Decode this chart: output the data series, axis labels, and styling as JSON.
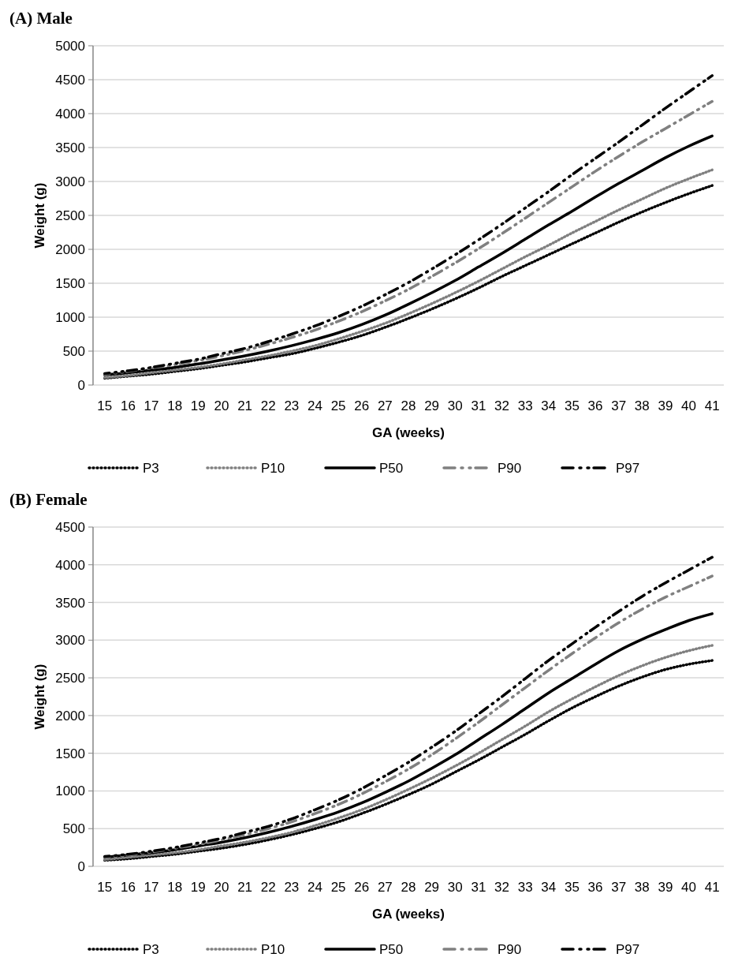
{
  "chart_data": [
    {
      "type": "line",
      "title": "(A) Male",
      "xlabel": "GA (weeks)",
      "ylabel": "Weight (g)",
      "categories": [
        "15",
        "16",
        "17",
        "18",
        "19",
        "20",
        "21",
        "22",
        "23",
        "24",
        "25",
        "26",
        "27",
        "28",
        "29",
        "30",
        "31",
        "32",
        "33",
        "34",
        "35",
        "36",
        "37",
        "38",
        "39",
        "40",
        "41"
      ],
      "ylim": [
        0,
        5000
      ],
      "yticks": [
        0,
        500,
        1000,
        1500,
        2000,
        2500,
        3000,
        3500,
        4000,
        4500,
        5000
      ],
      "grid": "y",
      "legend": "bottom",
      "series": [
        {
          "name": "P3",
          "color": "#000000",
          "line_style": "dotted",
          "values": [
            100,
            130,
            160,
            200,
            240,
            290,
            340,
            400,
            460,
            540,
            630,
            730,
            850,
            980,
            1120,
            1270,
            1430,
            1600,
            1760,
            1920,
            2080,
            2240,
            2400,
            2550,
            2690,
            2820,
            2940
          ]
        },
        {
          "name": "P10",
          "color": "#808080",
          "line_style": "dotted",
          "values": [
            110,
            140,
            180,
            220,
            260,
            310,
            370,
            430,
            500,
            580,
            680,
            790,
            910,
            1050,
            1200,
            1360,
            1530,
            1710,
            1890,
            2060,
            2240,
            2410,
            2580,
            2740,
            2900,
            3040,
            3170
          ]
        },
        {
          "name": "P50",
          "color": "#000000",
          "line_style": "solid",
          "values": [
            150,
            180,
            220,
            260,
            310,
            370,
            430,
            500,
            580,
            670,
            770,
            890,
            1030,
            1190,
            1360,
            1540,
            1740,
            1940,
            2150,
            2360,
            2560,
            2770,
            2970,
            3160,
            3350,
            3520,
            3670
          ]
        },
        {
          "name": "P90",
          "color": "#808080",
          "line_style": "dashed",
          "values": [
            160,
            200,
            250,
            300,
            360,
            430,
            510,
            600,
            700,
            810,
            940,
            1080,
            1240,
            1410,
            1600,
            1800,
            2010,
            2230,
            2460,
            2690,
            2920,
            3150,
            3370,
            3580,
            3780,
            3980,
            4180
          ]
        },
        {
          "name": "P97",
          "color": "#000000",
          "line_style": "dashed",
          "values": [
            170,
            210,
            260,
            320,
            380,
            460,
            540,
            640,
            750,
            870,
            1010,
            1160,
            1330,
            1510,
            1710,
            1920,
            2140,
            2370,
            2610,
            2850,
            3100,
            3340,
            3580,
            3830,
            4080,
            4320,
            4560
          ]
        }
      ]
    },
    {
      "type": "line",
      "title": "(B) Female",
      "xlabel": "GA (weeks)",
      "ylabel": "Weight (g)",
      "categories": [
        "15",
        "16",
        "17",
        "18",
        "19",
        "20",
        "21",
        "22",
        "23",
        "24",
        "25",
        "26",
        "27",
        "28",
        "29",
        "30",
        "31",
        "32",
        "33",
        "34",
        "35",
        "36",
        "37",
        "38",
        "39",
        "40",
        "41"
      ],
      "ylim": [
        0,
        4500
      ],
      "yticks": [
        0,
        500,
        1000,
        1500,
        2000,
        2500,
        3000,
        3500,
        4000,
        4500
      ],
      "grid": "y",
      "legend": "bottom",
      "series": [
        {
          "name": "P3",
          "color": "#000000",
          "line_style": "dotted",
          "values": [
            80,
            100,
            130,
            160,
            200,
            240,
            290,
            350,
            420,
            500,
            590,
            700,
            820,
            950,
            1090,
            1250,
            1410,
            1580,
            1750,
            1930,
            2100,
            2250,
            2390,
            2510,
            2610,
            2680,
            2730
          ]
        },
        {
          "name": "P10",
          "color": "#808080",
          "line_style": "dotted",
          "values": [
            90,
            120,
            150,
            180,
            220,
            270,
            320,
            380,
            450,
            540,
            640,
            750,
            880,
            1020,
            1170,
            1330,
            1500,
            1680,
            1860,
            2050,
            2220,
            2380,
            2530,
            2660,
            2770,
            2860,
            2930
          ]
        },
        {
          "name": "P50",
          "color": "#000000",
          "line_style": "solid",
          "values": [
            120,
            150,
            180,
            220,
            270,
            320,
            380,
            450,
            530,
            620,
            720,
            840,
            980,
            1130,
            1300,
            1480,
            1680,
            1880,
            2090,
            2300,
            2490,
            2680,
            2860,
            3010,
            3140,
            3260,
            3350
          ]
        },
        {
          "name": "P90",
          "color": "#808080",
          "line_style": "dashed",
          "values": [
            120,
            150,
            190,
            240,
            290,
            350,
            420,
            500,
            590,
            700,
            820,
            960,
            1120,
            1290,
            1480,
            1690,
            1910,
            2140,
            2370,
            2600,
            2820,
            3030,
            3230,
            3410,
            3570,
            3710,
            3850
          ]
        },
        {
          "name": "P97",
          "color": "#000000",
          "line_style": "dashed",
          "values": [
            130,
            160,
            200,
            250,
            310,
            370,
            450,
            530,
            630,
            750,
            880,
            1030,
            1200,
            1380,
            1580,
            1790,
            2020,
            2250,
            2490,
            2730,
            2950,
            3170,
            3380,
            3580,
            3760,
            3930,
            4100
          ]
        }
      ]
    }
  ]
}
